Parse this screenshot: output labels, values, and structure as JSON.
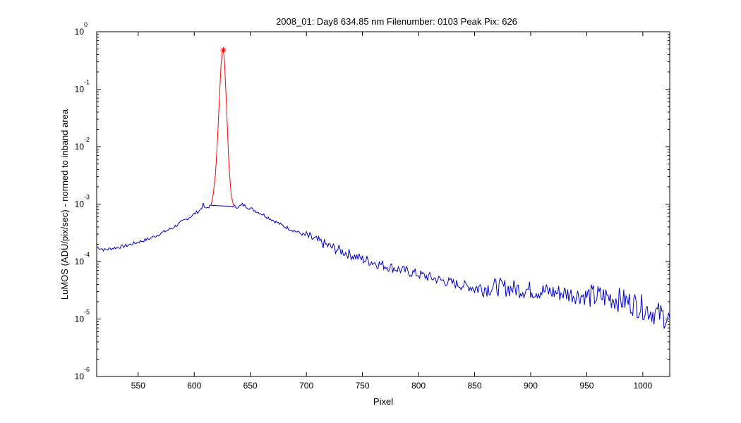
{
  "chart_data": {
    "type": "line",
    "title": "2008_01: Day8  634.85 nm  Filenumber: 0103 Peak Pix: 626",
    "xlabel": "Pixel",
    "ylabel": "LuMOS (ADU/pix/sec) - normed to inband area",
    "xlim": [
      513,
      1024
    ],
    "ylim": [
      1e-06,
      1
    ],
    "yscale": "log",
    "grid": false,
    "x_ticks": [
      "550",
      "600",
      "650",
      "700",
      "750",
      "800",
      "850",
      "900",
      "950",
      "1000"
    ],
    "y_ticks": [
      {
        "base": "10",
        "exp": "-6"
      },
      {
        "base": "10",
        "exp": "-5"
      },
      {
        "base": "10",
        "exp": "-4"
      },
      {
        "base": "10",
        "exp": "-3"
      },
      {
        "base": "10",
        "exp": "-2"
      },
      {
        "base": "10",
        "exp": "-1"
      },
      {
        "base": "10",
        "exp": "0"
      }
    ],
    "series": [
      {
        "color": "#0000cc",
        "x": [
          513,
          520,
          540,
          560,
          580,
          595,
          605,
          608,
          610,
          612,
          615,
          640,
          643,
          660,
          680,
          700,
          720,
          750,
          780,
          800,
          830,
          850,
          870,
          900,
          930,
          950,
          970,
          990,
          1000,
          1010,
          1020,
          1024
        ],
        "y": [
          0.00018,
          0.00016,
          0.00019,
          0.00025,
          0.00038,
          0.00058,
          0.00078,
          0.00098,
          0.00082,
          0.00088,
          0.00095,
          0.0009,
          0.00098,
          0.00068,
          0.00041,
          0.00028,
          0.000185,
          0.00011,
          7.5e-05,
          6e-05,
          4.2e-05,
          3.5e-05,
          3.6e-05,
          3.2e-05,
          2.8e-05,
          2.5e-05,
          2.4e-05,
          1.9e-05,
          1.6e-05,
          1.3e-05,
          1.1e-05,
          9.5e-06
        ]
      },
      {
        "color": "#ff0000",
        "x": [
          615,
          617,
          619,
          620,
          621,
          622,
          623,
          624,
          625,
          626,
          627,
          628,
          629,
          630,
          631,
          633,
          635
        ],
        "y": [
          0.00095,
          0.0015,
          0.0035,
          0.0075,
          0.017,
          0.045,
          0.12,
          0.28,
          0.45,
          0.48,
          0.3,
          0.11,
          0.04,
          0.013,
          0.0045,
          0.0014,
          0.00095
        ]
      }
    ],
    "peak_marker": {
      "x": 626,
      "y": 0.48,
      "color": "#ff0000"
    }
  }
}
